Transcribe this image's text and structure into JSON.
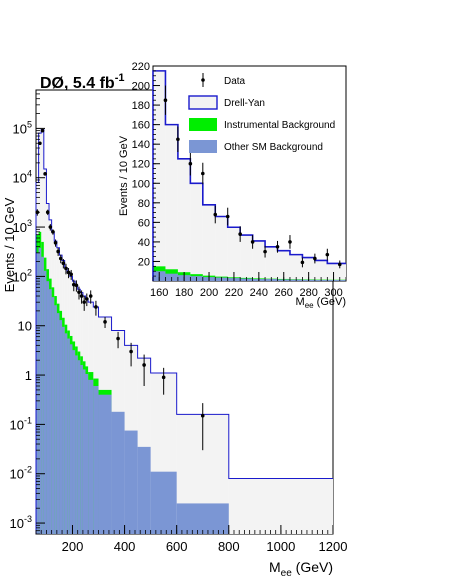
{
  "chart_data": [
    {
      "type": "histogram",
      "scale": "log",
      "label": {
        "main": "DØ, 5.4 fb",
        "sup": "-1"
      },
      "ylabel": "Events / 10 GeV",
      "xlabel": {
        "main": "M",
        "sub": "ee",
        "unit": " (GeV)"
      },
      "xlim": [
        60,
        1200
      ],
      "ylim": [
        0.0006,
        600000
      ],
      "xticks": [
        200,
        400,
        600,
        800,
        1000,
        1200
      ],
      "xtick_labels": [
        "200",
        "400",
        "600",
        "800",
        "1000",
        "1200"
      ],
      "yticks": [
        {
          "value": 0.001,
          "base": "10",
          "exp": "-3"
        },
        {
          "value": 0.01,
          "base": "10",
          "exp": "-2"
        },
        {
          "value": 0.1,
          "base": "10",
          "exp": "-1"
        },
        {
          "value": 1,
          "base": "1",
          "exp": ""
        },
        {
          "value": 10,
          "base": "10",
          "exp": ""
        },
        {
          "value": 100,
          "base": "10",
          "exp": "2"
        },
        {
          "value": 1000,
          "base": "10",
          "exp": "3"
        },
        {
          "value": 10000,
          "base": "10",
          "exp": "4"
        },
        {
          "value": 100000,
          "base": "10",
          "exp": "5"
        }
      ],
      "drell_yan": [
        [
          60,
          70,
          8000
        ],
        [
          70,
          80,
          80000
        ],
        [
          80,
          90,
          95000
        ],
        [
          90,
          100,
          15000
        ],
        [
          100,
          110,
          3000
        ],
        [
          110,
          120,
          1400
        ],
        [
          120,
          130,
          800
        ],
        [
          130,
          140,
          520
        ],
        [
          140,
          150,
          380
        ],
        [
          150,
          160,
          270
        ],
        [
          160,
          170,
          210
        ],
        [
          170,
          180,
          150
        ],
        [
          180,
          190,
          122
        ],
        [
          190,
          200,
          100
        ],
        [
          200,
          210,
          80
        ],
        [
          210,
          220,
          66
        ],
        [
          220,
          230,
          55
        ],
        [
          230,
          240,
          47
        ],
        [
          240,
          250,
          40
        ],
        [
          250,
          260,
          35
        ],
        [
          260,
          280,
          30
        ],
        [
          280,
          300,
          24
        ],
        [
          300,
          350,
          15
        ],
        [
          350,
          400,
          8
        ],
        [
          400,
          450,
          4
        ],
        [
          450,
          500,
          2.2
        ],
        [
          500,
          600,
          1.1
        ],
        [
          600,
          800,
          0.16
        ],
        [
          800,
          1200,
          0.008
        ]
      ],
      "other_sm": [
        [
          60,
          70,
          300
        ],
        [
          70,
          80,
          380
        ],
        [
          80,
          90,
          250
        ],
        [
          90,
          100,
          130
        ],
        [
          100,
          110,
          80
        ],
        [
          110,
          120,
          55
        ],
        [
          120,
          130,
          38
        ],
        [
          130,
          140,
          26
        ],
        [
          140,
          150,
          18
        ],
        [
          150,
          160,
          13
        ],
        [
          160,
          170,
          9.5
        ],
        [
          170,
          180,
          7
        ],
        [
          180,
          190,
          5.5
        ],
        [
          190,
          200,
          4.2
        ],
        [
          200,
          210,
          3.2
        ],
        [
          210,
          220,
          2.5
        ],
        [
          220,
          230,
          2
        ],
        [
          230,
          240,
          1.6
        ],
        [
          240,
          250,
          1.3
        ],
        [
          250,
          260,
          1.05
        ],
        [
          260,
          280,
          0.8
        ],
        [
          280,
          300,
          0.6
        ],
        [
          300,
          350,
          0.4
        ],
        [
          350,
          400,
          0.18
        ],
        [
          400,
          450,
          0.075
        ],
        [
          450,
          500,
          0.035
        ],
        [
          500,
          600,
          0.011
        ],
        [
          600,
          800,
          0.0025
        ],
        [
          800,
          1200,
          0.0006
        ]
      ],
      "instrumental": [
        [
          60,
          70,
          700
        ],
        [
          70,
          80,
          800
        ],
        [
          80,
          90,
          500
        ],
        [
          90,
          100,
          240
        ],
        [
          100,
          110,
          140
        ],
        [
          110,
          120,
          90
        ],
        [
          120,
          130,
          60
        ],
        [
          130,
          140,
          40
        ],
        [
          140,
          150,
          28
        ],
        [
          150,
          160,
          20
        ],
        [
          160,
          170,
          14.5
        ],
        [
          170,
          180,
          10.5
        ],
        [
          180,
          190,
          8
        ],
        [
          190,
          200,
          6.2
        ],
        [
          200,
          210,
          4.8
        ],
        [
          210,
          220,
          3.8
        ],
        [
          220,
          230,
          3
        ],
        [
          230,
          240,
          2.4
        ],
        [
          240,
          250,
          1.9
        ],
        [
          250,
          260,
          1.5
        ],
        [
          260,
          280,
          1.15
        ],
        [
          280,
          300,
          0.85
        ],
        [
          300,
          350,
          0.5
        ]
      ],
      "data_points": [
        {
          "x": 65,
          "y": 2000,
          "err": 300
        },
        {
          "x": 75,
          "y": 50000,
          "err": 1500
        },
        {
          "x": 85,
          "y": 90000,
          "err": 2000
        },
        {
          "x": 95,
          "y": 12000,
          "err": 600
        },
        {
          "x": 105,
          "y": 2000,
          "err": 250
        },
        {
          "x": 115,
          "y": 1000,
          "err": 150
        },
        {
          "x": 125,
          "y": 800,
          "err": 100
        },
        {
          "x": 135,
          "y": 480,
          "err": 80
        },
        {
          "x": 145,
          "y": 320,
          "err": 60
        },
        {
          "x": 155,
          "y": 230,
          "err": 45
        },
        {
          "x": 165,
          "y": 185,
          "err": 40
        },
        {
          "x": 175,
          "y": 145,
          "err": 35
        },
        {
          "x": 185,
          "y": 120,
          "err": 28
        },
        {
          "x": 195,
          "y": 110,
          "err": 25
        },
        {
          "x": 205,
          "y": 68,
          "err": 18
        },
        {
          "x": 215,
          "y": 66,
          "err": 17
        },
        {
          "x": 225,
          "y": 48,
          "err": 14
        },
        {
          "x": 235,
          "y": 40,
          "err": 12
        },
        {
          "x": 245,
          "y": 30,
          "err": 10
        },
        {
          "x": 255,
          "y": 35,
          "err": 10
        },
        {
          "x": 270,
          "y": 40,
          "err": 12
        },
        {
          "x": 290,
          "y": 24,
          "err": 8
        },
        {
          "x": 325,
          "y": 12,
          "err": 3
        },
        {
          "x": 375,
          "y": 5.5,
          "err": 2
        },
        {
          "x": 425,
          "y": 3,
          "err": 1.5
        },
        {
          "x": 475,
          "y": 1.6,
          "err": 1
        },
        {
          "x": 550,
          "y": 0.9,
          "err": 0.5
        },
        {
          "x": 700,
          "y": 0.15,
          "err": 0.12
        }
      ]
    },
    {
      "type": "histogram",
      "scale": "linear",
      "xlim": [
        155,
        310
      ],
      "ylim": [
        0,
        220
      ],
      "xticks": [
        160,
        180,
        200,
        220,
        240,
        260,
        280,
        300
      ],
      "xtick_labels": [
        "160",
        "180",
        "200",
        "220",
        "240",
        "260",
        "280",
        "300"
      ],
      "yticks": [
        20,
        40,
        60,
        80,
        100,
        120,
        140,
        160,
        180,
        200,
        220
      ],
      "ytick_labels": [
        "20",
        "40",
        "60",
        "80",
        "100",
        "120",
        "140",
        "160",
        "180",
        "200",
        "220"
      ],
      "ylabel": "Events / 10 GeV",
      "xlabel": {
        "main": "M",
        "sub": "ee",
        "unit": " (GeV)"
      },
      "legend": [
        {
          "name": "Data",
          "style": "marker"
        },
        {
          "name": "Drell-Yan",
          "style": "box",
          "fill": "#f3f3f3",
          "stroke": "#1a1acc"
        },
        {
          "name": "Instrumental Background",
          "style": "box",
          "fill": "#00ee00"
        },
        {
          "name": "Other SM Background",
          "style": "box",
          "fill": "#7b96d4"
        }
      ],
      "drell_yan": [
        [
          155,
          165,
          215
        ],
        [
          165,
          175,
          160
        ],
        [
          175,
          185,
          125
        ],
        [
          185,
          195,
          100
        ],
        [
          195,
          205,
          78
        ],
        [
          205,
          215,
          66
        ],
        [
          215,
          225,
          55
        ],
        [
          225,
          235,
          47
        ],
        [
          235,
          245,
          41
        ],
        [
          245,
          255,
          35
        ],
        [
          255,
          265,
          31
        ],
        [
          265,
          275,
          27
        ],
        [
          275,
          285,
          24
        ],
        [
          285,
          295,
          21
        ],
        [
          295,
          305,
          18
        ],
        [
          305,
          310,
          18
        ]
      ],
      "other_sm": [
        [
          155,
          165,
          10
        ],
        [
          165,
          175,
          7.5
        ],
        [
          175,
          185,
          6
        ],
        [
          185,
          195,
          5
        ],
        [
          195,
          205,
          4
        ],
        [
          205,
          215,
          3.5
        ],
        [
          215,
          225,
          3
        ],
        [
          225,
          235,
          2.5
        ],
        [
          235,
          245,
          2
        ],
        [
          245,
          255,
          2
        ],
        [
          255,
          265,
          1.6
        ],
        [
          265,
          275,
          1.4
        ],
        [
          275,
          285,
          1.2
        ],
        [
          285,
          295,
          1
        ],
        [
          295,
          305,
          1
        ],
        [
          305,
          310,
          1
        ]
      ],
      "instrumental": [
        [
          155,
          165,
          15
        ],
        [
          165,
          175,
          12
        ],
        [
          175,
          185,
          9
        ],
        [
          185,
          195,
          7
        ],
        [
          195,
          205,
          5.5
        ],
        [
          205,
          215,
          4.5
        ],
        [
          215,
          225,
          3.8
        ],
        [
          225,
          235,
          3.2
        ],
        [
          235,
          245,
          2.7
        ],
        [
          245,
          255,
          2.4
        ],
        [
          255,
          265,
          2.1
        ],
        [
          265,
          275,
          1.8
        ],
        [
          275,
          285,
          1.6
        ],
        [
          285,
          295,
          1.4
        ],
        [
          295,
          305,
          1.3
        ],
        [
          305,
          310,
          1.3
        ]
      ],
      "data_points": [
        {
          "x": 165,
          "y": 185,
          "err": 15
        },
        {
          "x": 175,
          "y": 145,
          "err": 13
        },
        {
          "x": 185,
          "y": 120,
          "err": 12
        },
        {
          "x": 195,
          "y": 110,
          "err": 11
        },
        {
          "x": 205,
          "y": 68,
          "err": 9
        },
        {
          "x": 215,
          "y": 66,
          "err": 9
        },
        {
          "x": 225,
          "y": 48,
          "err": 8
        },
        {
          "x": 235,
          "y": 40,
          "err": 7
        },
        {
          "x": 245,
          "y": 30,
          "err": 6
        },
        {
          "x": 255,
          "y": 35,
          "err": 6
        },
        {
          "x": 265,
          "y": 40,
          "err": 7
        },
        {
          "x": 275,
          "y": 19,
          "err": 5
        },
        {
          "x": 285,
          "y": 23,
          "err": 5
        },
        {
          "x": 295,
          "y": 27,
          "err": 6
        },
        {
          "x": 305,
          "y": 17,
          "err": 4
        }
      ]
    }
  ],
  "colors": {
    "drell_yan_fill": "#f3f3f3",
    "drell_yan_line": "#1a1acc",
    "instrumental": "#00ee00",
    "other_sm": "#7b96d4",
    "data": "#000000"
  }
}
